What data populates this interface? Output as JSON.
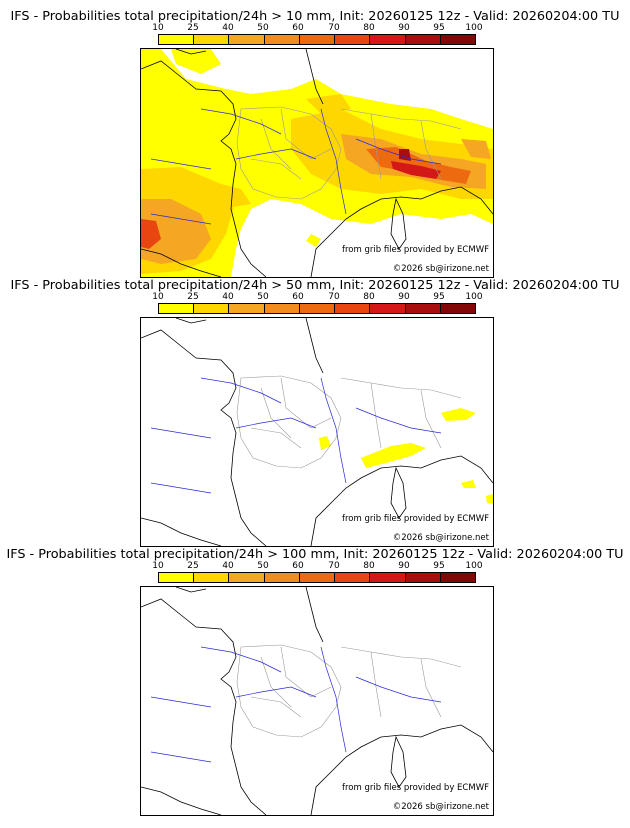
{
  "legend": {
    "ticks": [
      "10",
      "25",
      "40",
      "50",
      "60",
      "70",
      "80",
      "90",
      "95",
      "100"
    ],
    "colors": [
      "#ffff00",
      "#ffd700",
      "#f5a623",
      "#f28c1e",
      "#ee6a10",
      "#e84610",
      "#d41818",
      "#a80e0e",
      "#820808",
      "#5a0404"
    ]
  },
  "panels": [
    {
      "title": "IFS - Probabilities total precipitation/24h > 10 mm, Init: 20260125 12z - Valid: 20260204:00 TU",
      "credit_line1": "from grib files provided by ECMWF",
      "credit_line2": "©2026 sb@irizone.net",
      "threshold_mm": 10
    },
    {
      "title": "IFS - Probabilities total precipitation/24h > 50 mm, Init: 20260125 12z - Valid: 20260204:00 TU",
      "credit_line1": "from grib files provided by ECMWF",
      "credit_line2": "©2026 sb@irizone.net",
      "threshold_mm": 50
    },
    {
      "title": "IFS - Probabilities total precipitation/24h > 100 mm, Init: 20260125 12z - Valid: 20260204:00 TU",
      "credit_line1": "from grib files provided by ECMWF",
      "credit_line2": "©2026 sb@irizone.net",
      "threshold_mm": 100
    }
  ],
  "map_colors": {
    "coast": "#000000",
    "borders": "#9a9a9a",
    "rivers": "#2a2ad8"
  }
}
